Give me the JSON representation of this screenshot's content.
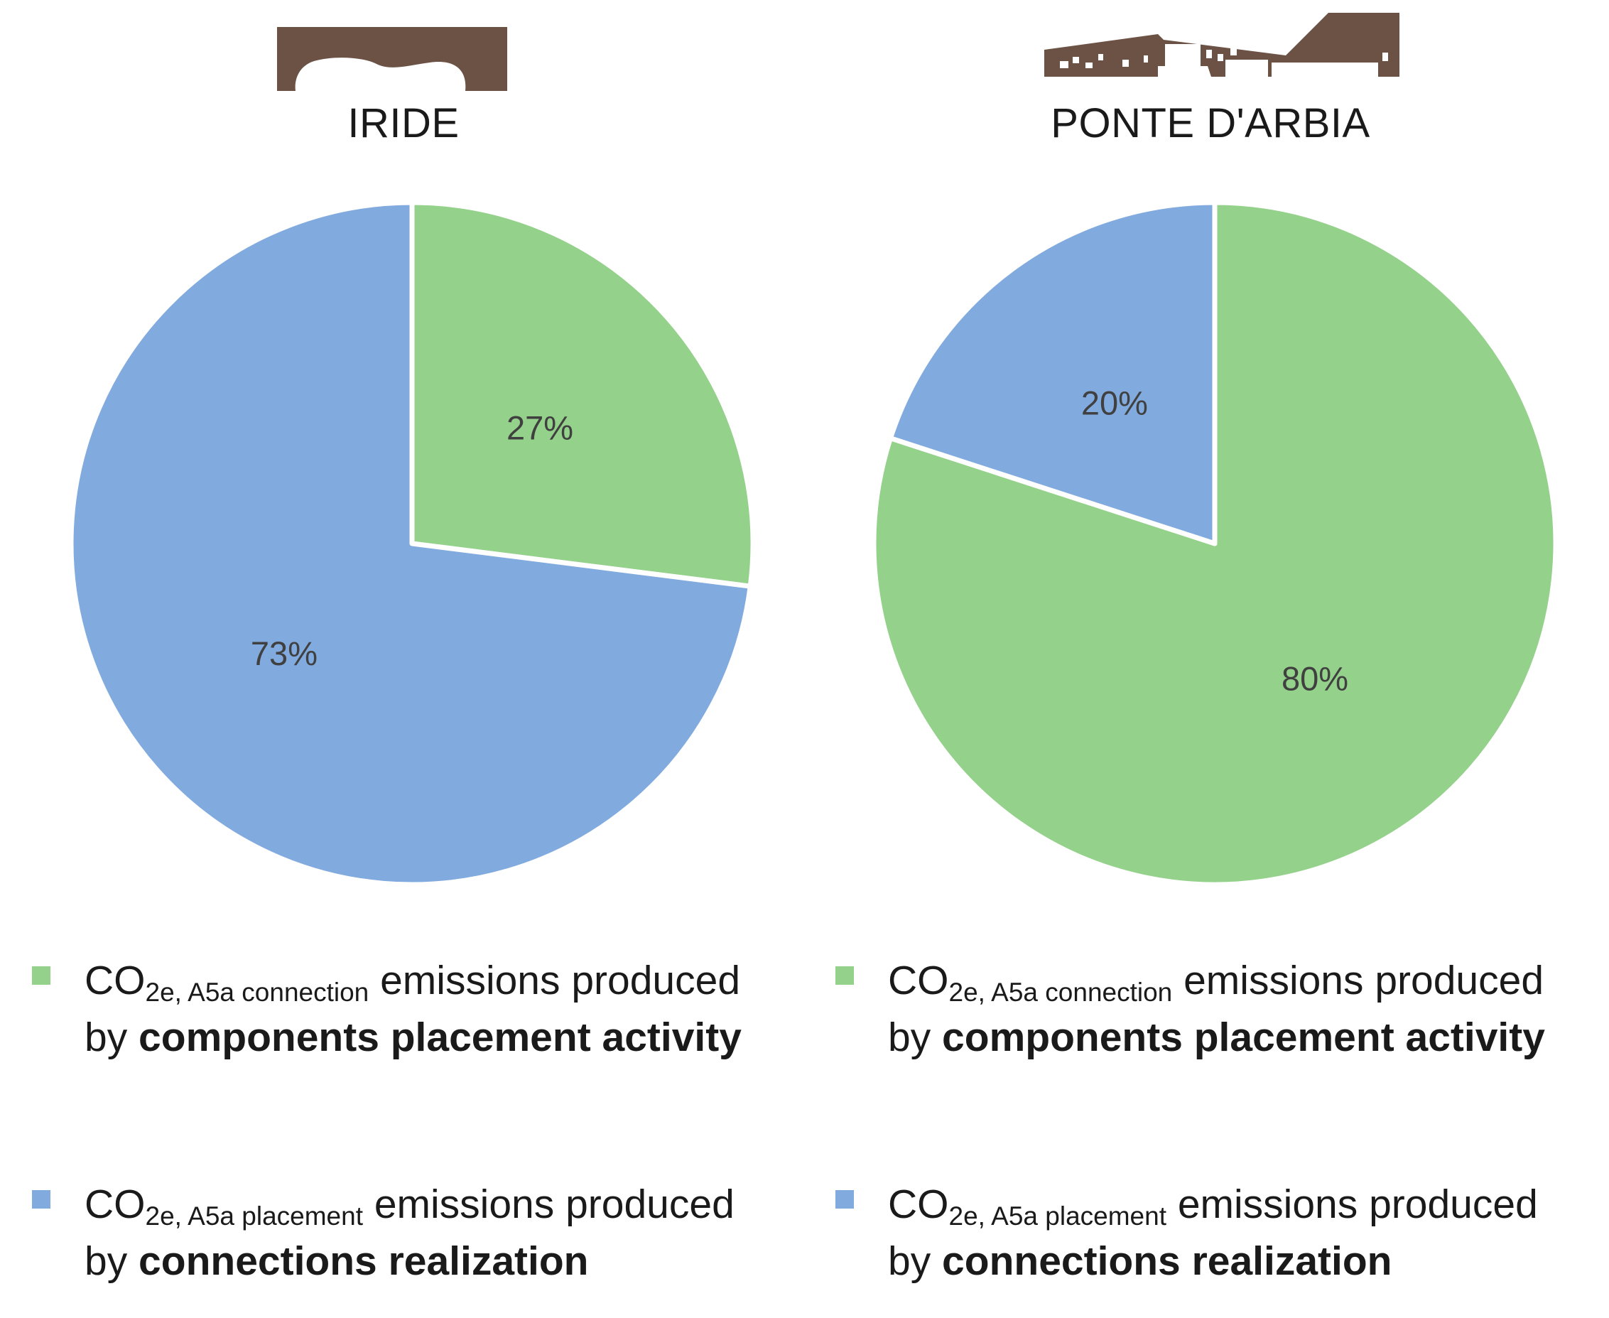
{
  "colors": {
    "green": "#94d18a",
    "blue": "#81aadf",
    "brown": "#6b5244",
    "label": "#404040"
  },
  "logos": [
    "iride-building-logo",
    "ponte-darbia-building-logo"
  ],
  "chart_data": [
    {
      "type": "pie",
      "title": "IRIDE",
      "slices": [
        {
          "label": "CO2e, A5a connection emissions produced by components placement activity",
          "value": 27,
          "display": "27%",
          "color": "#94d18a"
        },
        {
          "label": "CO2e, A5a placement emissions produced by connections realization",
          "value": 73,
          "display": "73%",
          "color": "#81aadf"
        }
      ],
      "legend_position": "bottom"
    },
    {
      "type": "pie",
      "title": "PONTE D'ARBIA",
      "slices": [
        {
          "label": "CO2e, A5a connection emissions produced by components placement activity",
          "value": 80,
          "display": "80%",
          "color": "#94d18a"
        },
        {
          "label": "CO2e, A5a placement emissions produced by connections realization",
          "value": 20,
          "display": "20%",
          "color": "#81aadf"
        }
      ],
      "legend_position": "bottom"
    }
  ],
  "legend": {
    "items": [
      {
        "prefix": "CO",
        "subscript": "2e, A5a connection",
        "text": " emissions produced",
        "by": "by ",
        "bold": "components placement activity"
      },
      {
        "prefix": "CO",
        "subscript": "2e, A5a placement",
        "text": " emissions produced",
        "by": "by ",
        "bold": "connections realization"
      }
    ]
  }
}
